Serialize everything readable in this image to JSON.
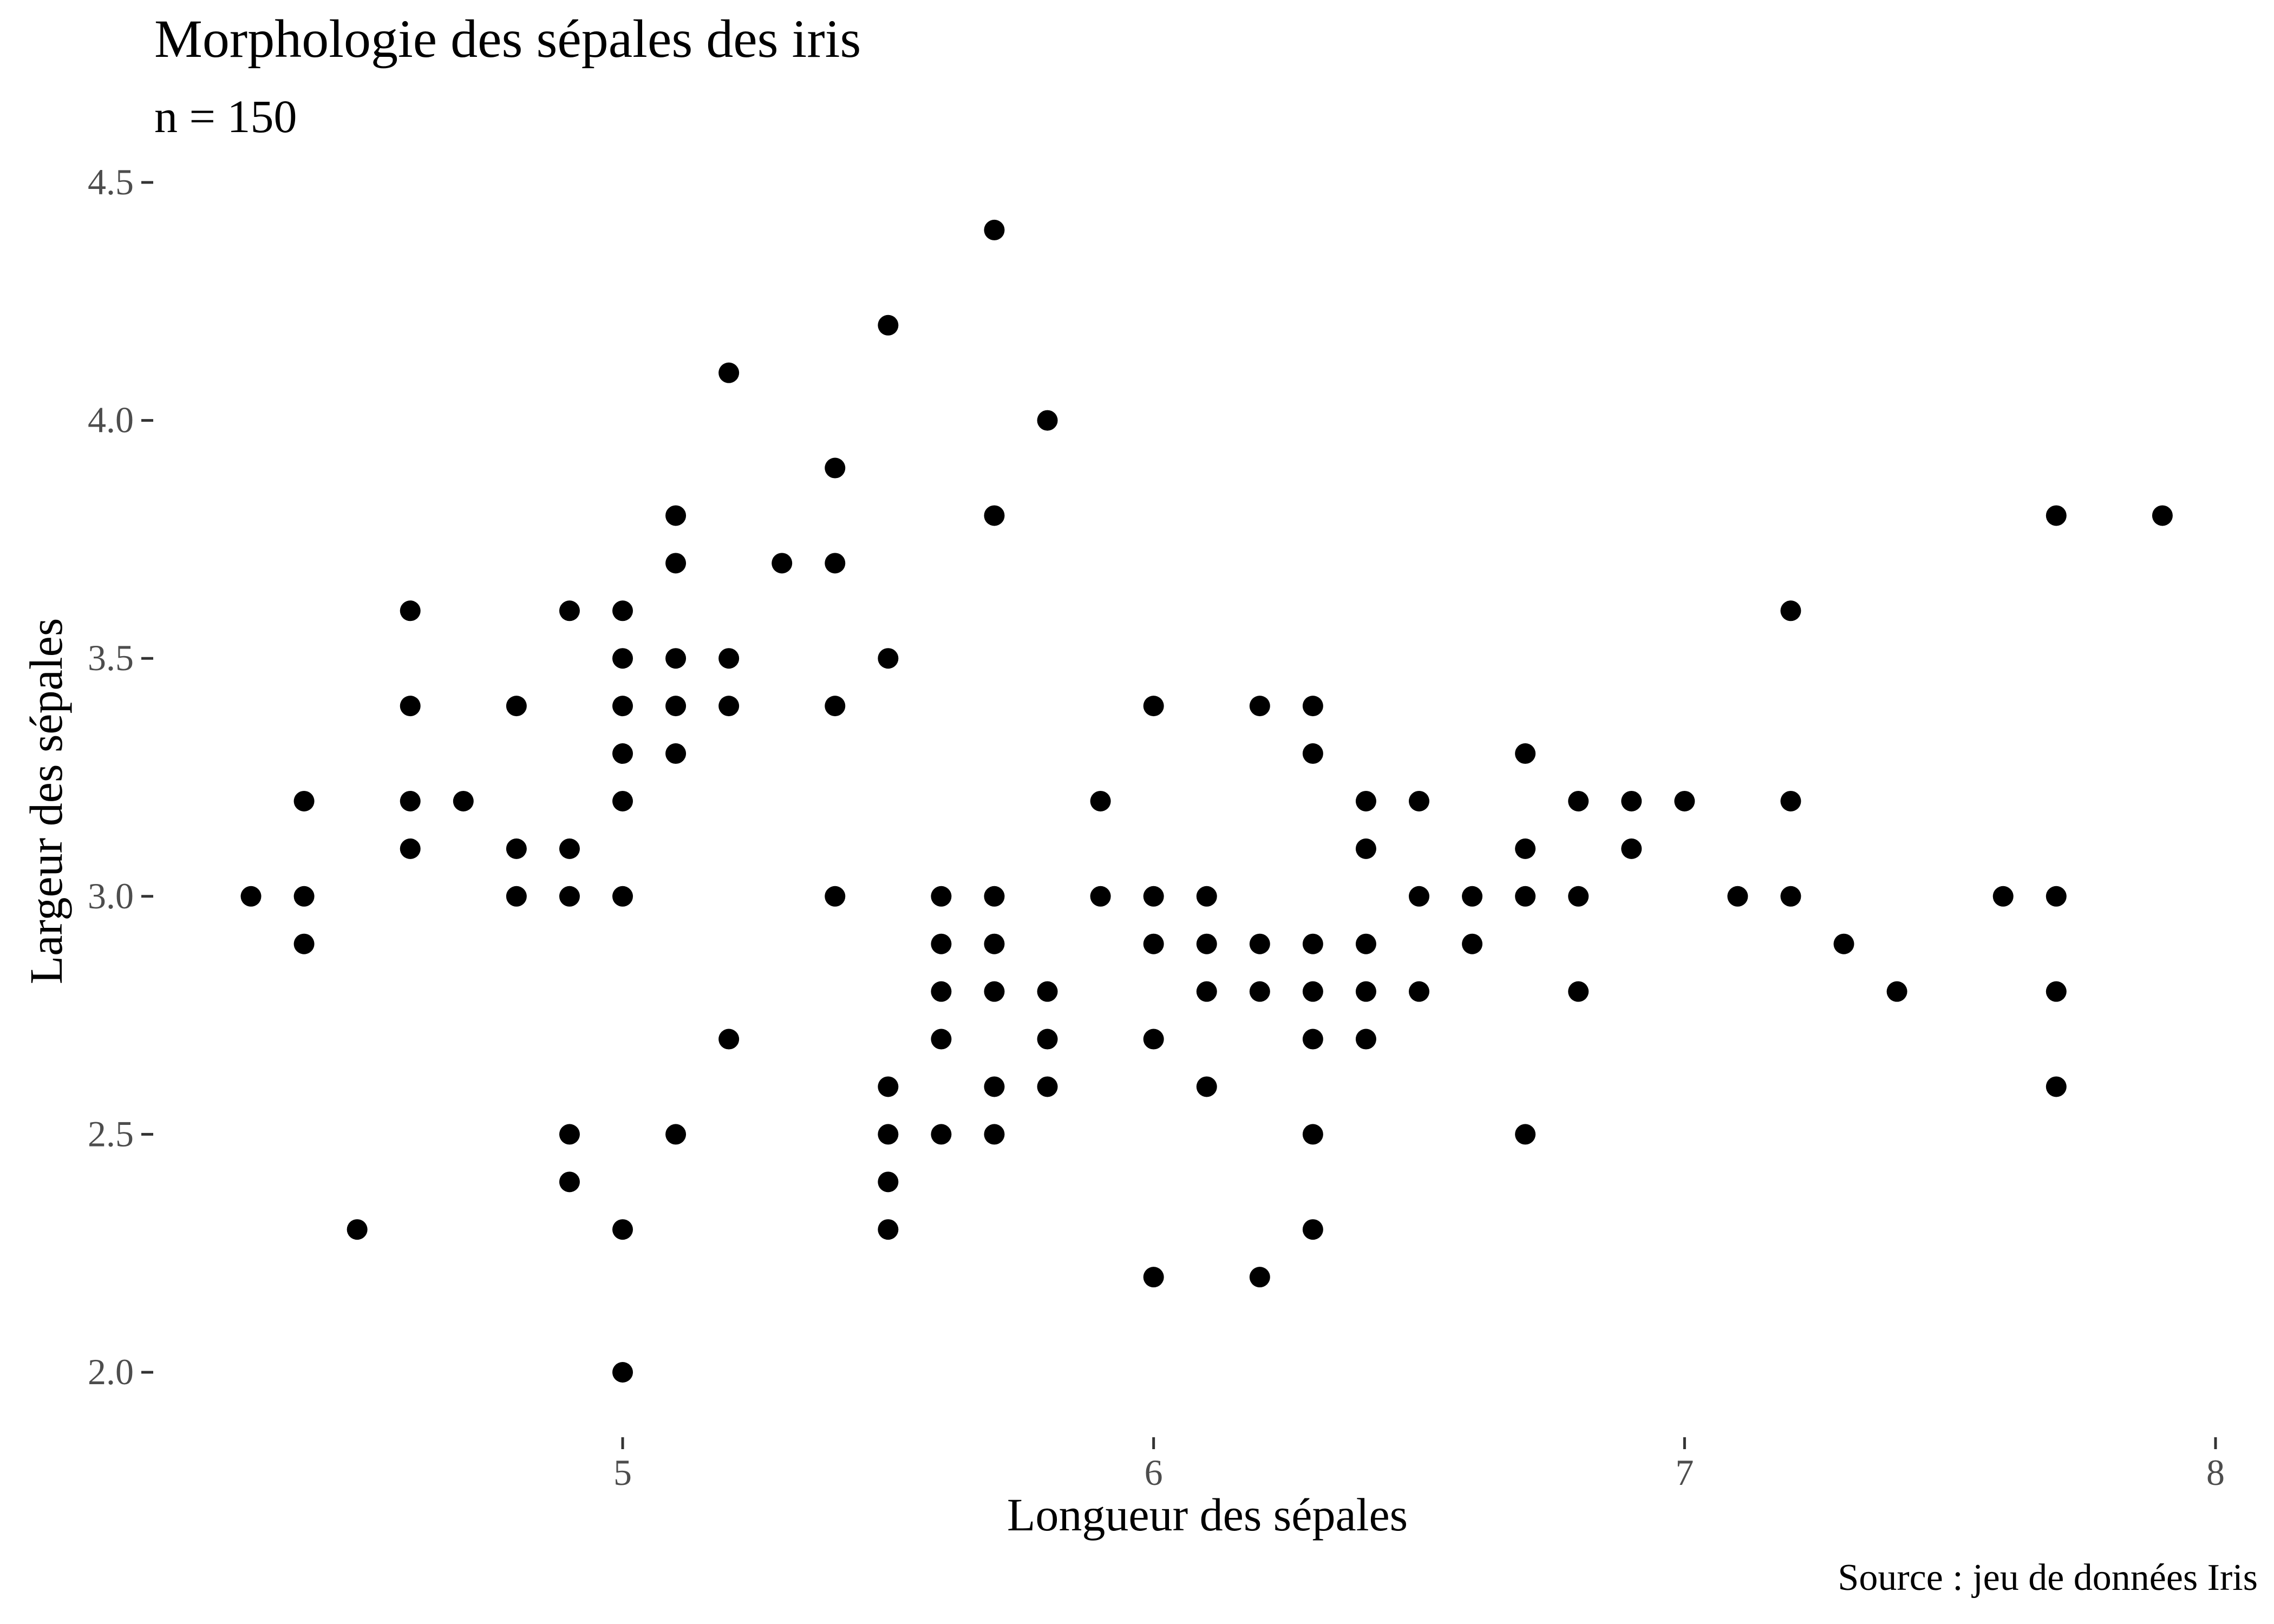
{
  "chart_data": {
    "type": "scatter",
    "title": "Morphologie des sépales des iris",
    "subtitle": "n = 150",
    "caption": "Source : jeu de données Iris",
    "xlabel": "Longueur des sépales",
    "ylabel": "Largeur des sépales",
    "xlim": [
      4.2,
      8.0
    ],
    "ylim": [
      1.9,
      4.5
    ],
    "x_ticks": [
      5,
      6,
      7,
      8
    ],
    "x_tick_labels": [
      "5",
      "6",
      "7",
      "8"
    ],
    "y_ticks": [
      2.0,
      2.5,
      3.0,
      3.5,
      4.0,
      4.5
    ],
    "y_tick_labels": [
      "2.0",
      "2.5",
      "3.0",
      "3.5",
      "4.0",
      "4.5"
    ],
    "grid": false,
    "point_color": "#000000",
    "points": [
      [
        4.3,
        3.0
      ],
      [
        4.4,
        3.2
      ],
      [
        4.4,
        3.0
      ],
      [
        4.4,
        2.9
      ],
      [
        4.5,
        2.3
      ],
      [
        4.6,
        3.6
      ],
      [
        4.6,
        3.4
      ],
      [
        4.6,
        3.2
      ],
      [
        4.6,
        3.1
      ],
      [
        4.7,
        3.2
      ],
      [
        4.8,
        3.4
      ],
      [
        4.8,
        3.1
      ],
      [
        4.8,
        3.0
      ],
      [
        4.9,
        3.6
      ],
      [
        4.9,
        3.1
      ],
      [
        4.9,
        3.0
      ],
      [
        4.9,
        2.5
      ],
      [
        4.9,
        2.4
      ],
      [
        5.0,
        3.6
      ],
      [
        5.0,
        3.5
      ],
      [
        5.0,
        3.4
      ],
      [
        5.0,
        3.3
      ],
      [
        5.0,
        3.2
      ],
      [
        5.0,
        3.0
      ],
      [
        5.0,
        2.3
      ],
      [
        5.0,
        2.0
      ],
      [
        5.1,
        3.8
      ],
      [
        5.1,
        3.7
      ],
      [
        5.1,
        3.5
      ],
      [
        5.1,
        3.4
      ],
      [
        5.1,
        3.3
      ],
      [
        5.1,
        2.5
      ],
      [
        5.2,
        4.1
      ],
      [
        5.2,
        3.5
      ],
      [
        5.2,
        3.4
      ],
      [
        5.2,
        2.7
      ],
      [
        5.3,
        3.7
      ],
      [
        5.4,
        3.9
      ],
      [
        5.4,
        3.7
      ],
      [
        5.4,
        3.4
      ],
      [
        5.4,
        3.0
      ],
      [
        5.5,
        4.2
      ],
      [
        5.5,
        3.5
      ],
      [
        5.5,
        2.6
      ],
      [
        5.5,
        2.5
      ],
      [
        5.5,
        2.4
      ],
      [
        5.5,
        2.3
      ],
      [
        5.6,
        3.0
      ],
      [
        5.6,
        2.9
      ],
      [
        5.6,
        2.8
      ],
      [
        5.6,
        2.7
      ],
      [
        5.6,
        2.5
      ],
      [
        5.7,
        4.4
      ],
      [
        5.7,
        3.8
      ],
      [
        5.7,
        3.0
      ],
      [
        5.7,
        2.9
      ],
      [
        5.7,
        2.8
      ],
      [
        5.7,
        2.6
      ],
      [
        5.7,
        2.5
      ],
      [
        5.8,
        4.0
      ],
      [
        5.8,
        2.8
      ],
      [
        5.8,
        2.7
      ],
      [
        5.8,
        2.6
      ],
      [
        5.9,
        3.2
      ],
      [
        5.9,
        3.0
      ],
      [
        6.0,
        3.4
      ],
      [
        6.0,
        3.0
      ],
      [
        6.0,
        2.9
      ],
      [
        6.0,
        2.7
      ],
      [
        6.0,
        2.2
      ],
      [
        6.1,
        3.0
      ],
      [
        6.1,
        2.9
      ],
      [
        6.1,
        2.8
      ],
      [
        6.1,
        2.6
      ],
      [
        6.2,
        3.4
      ],
      [
        6.2,
        2.9
      ],
      [
        6.2,
        2.8
      ],
      [
        6.2,
        2.2
      ],
      [
        6.3,
        3.4
      ],
      [
        6.3,
        3.3
      ],
      [
        6.3,
        2.9
      ],
      [
        6.3,
        2.8
      ],
      [
        6.3,
        2.7
      ],
      [
        6.3,
        2.5
      ],
      [
        6.3,
        2.3
      ],
      [
        6.4,
        3.2
      ],
      [
        6.4,
        3.1
      ],
      [
        6.4,
        2.9
      ],
      [
        6.4,
        2.8
      ],
      [
        6.4,
        2.7
      ],
      [
        6.5,
        3.2
      ],
      [
        6.5,
        3.0
      ],
      [
        6.5,
        2.8
      ],
      [
        6.6,
        3.0
      ],
      [
        6.6,
        2.9
      ],
      [
        6.7,
        3.3
      ],
      [
        6.7,
        3.1
      ],
      [
        6.7,
        3.0
      ],
      [
        6.7,
        2.5
      ],
      [
        6.8,
        3.2
      ],
      [
        6.8,
        3.0
      ],
      [
        6.8,
        2.8
      ],
      [
        6.9,
        3.2
      ],
      [
        6.9,
        3.1
      ],
      [
        7.0,
        3.2
      ],
      [
        7.1,
        3.0
      ],
      [
        7.2,
        3.6
      ],
      [
        7.2,
        3.2
      ],
      [
        7.2,
        3.0
      ],
      [
        7.3,
        2.9
      ],
      [
        7.4,
        2.8
      ],
      [
        7.6,
        3.0
      ],
      [
        7.7,
        3.8
      ],
      [
        7.7,
        3.0
      ],
      [
        7.7,
        2.8
      ],
      [
        7.7,
        2.6
      ],
      [
        7.9,
        3.8
      ]
    ]
  }
}
